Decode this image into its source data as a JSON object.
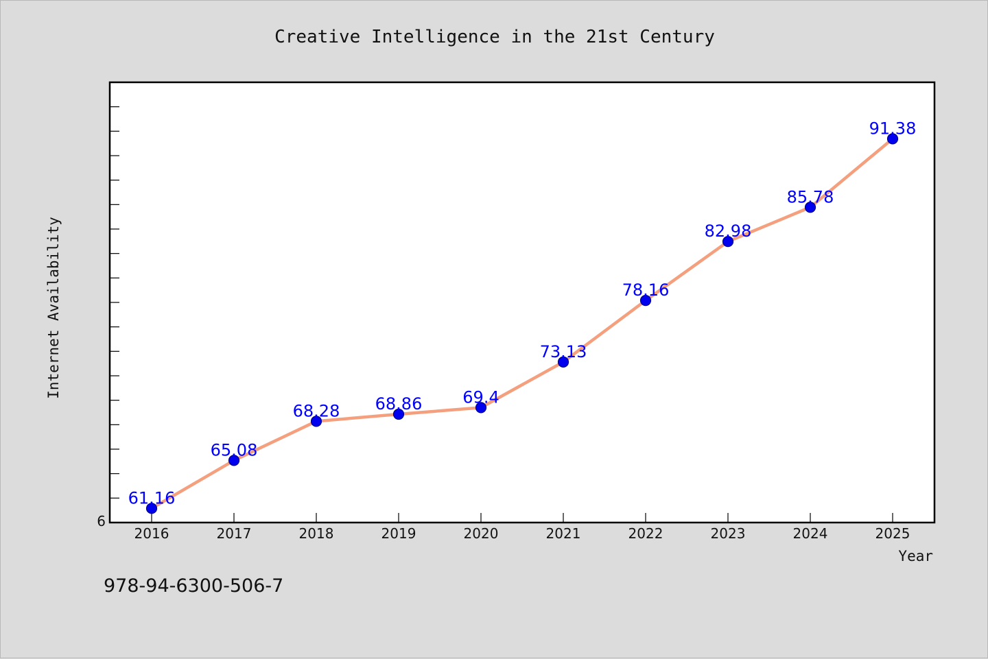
{
  "chart_data": {
    "type": "line",
    "title": "Creative Intelligence in the 21st Century",
    "xlabel": "Year",
    "ylabel": "Internet Availability",
    "categories": [
      "2016",
      "2017",
      "2018",
      "2019",
      "2020",
      "2021",
      "2022",
      "2023",
      "2024",
      "2025"
    ],
    "series": [
      {
        "values": [
          61.16,
          65.08,
          68.28,
          68.86,
          69.4,
          73.13,
          78.16,
          82.98,
          85.78,
          91.38
        ],
        "labels": [
          "61.16",
          "65.08",
          "68.28",
          "68.86",
          "69.4",
          "73.13",
          "78.16",
          "82.98",
          "85.78",
          "91.38"
        ]
      }
    ],
    "y_tick_labels": [
      "6"
    ],
    "ylim": [
      60,
      96
    ],
    "grid": false,
    "legend": "none"
  },
  "footer": {
    "isbn": "978-94-6300-506-7"
  },
  "colors": {
    "background": "#dcdcdc",
    "plot_background": "#ffffff",
    "line": "#f4a07e",
    "marker": "#0000ee",
    "data_label": "#0000ff"
  }
}
